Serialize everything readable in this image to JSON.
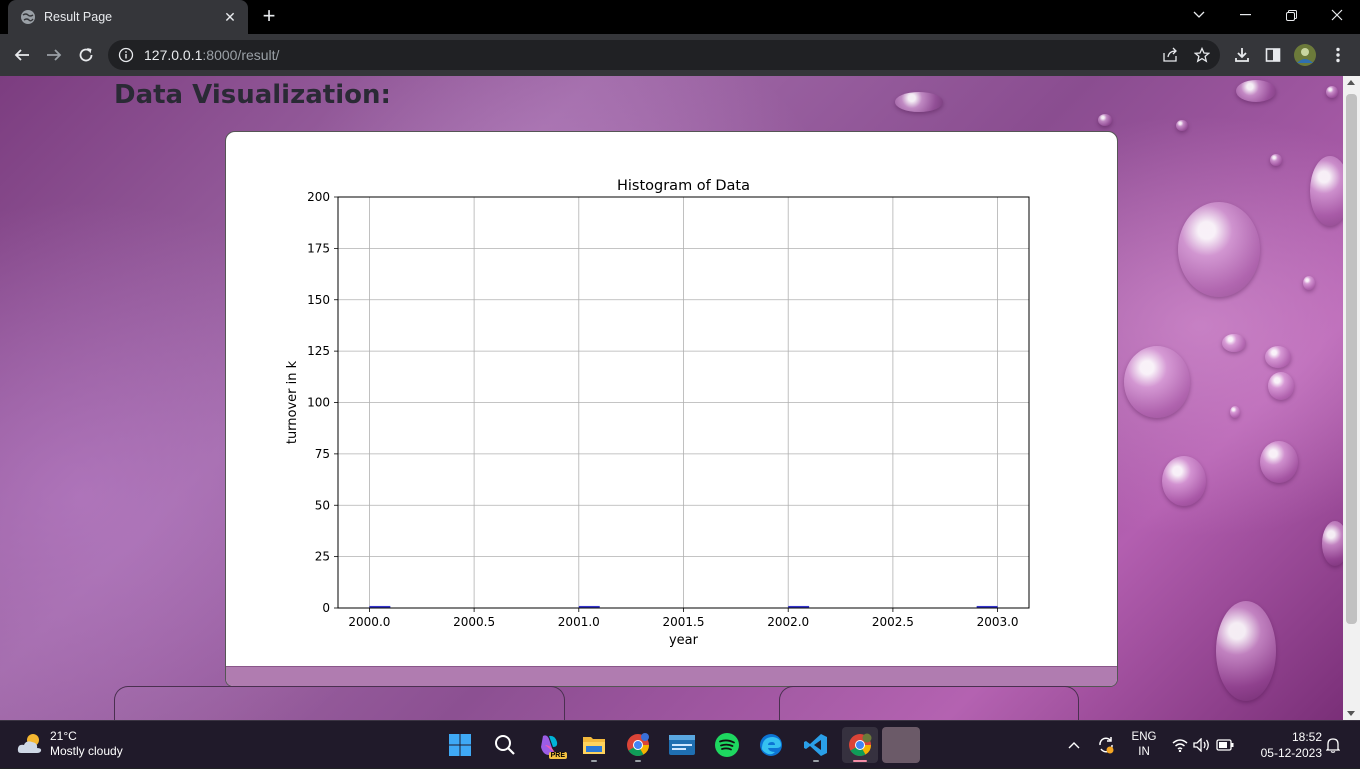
{
  "browser": {
    "tab_title": "Result Page",
    "tab_close": "✕",
    "new_tab": "+",
    "url_host": "127.0.0.1",
    "url_path": ":8000/result/"
  },
  "page": {
    "heading": "Data Visualization:"
  },
  "chart_data": {
    "type": "bar",
    "title": "Histogram of Data",
    "xlabel": "year",
    "ylabel": "turnover in k",
    "xlim": [
      1999.85,
      2003.15
    ],
    "ylim": [
      0,
      200
    ],
    "xticks": [
      "2000.0",
      "2000.5",
      "2001.0",
      "2001.5",
      "2002.0",
      "2002.5",
      "2003.0"
    ],
    "yticks": [
      "0",
      "25",
      "50",
      "75",
      "100",
      "125",
      "150",
      "175",
      "200"
    ],
    "grid": true,
    "bar_color": "#3333cc",
    "bars": [
      {
        "x": 2000.05,
        "value": 1
      },
      {
        "x": 2001.05,
        "value": 1
      },
      {
        "x": 2002.05,
        "value": 1
      },
      {
        "x": 2002.95,
        "value": 1
      }
    ]
  },
  "taskbar": {
    "weather_temp": "21°C",
    "weather_desc": "Mostly cloudy",
    "lang_top": "ENG",
    "lang_bottom": "IN",
    "time": "18:52",
    "date": "05-12-2023",
    "copilot_badge": "PRE"
  },
  "colors": {
    "accent": "#f48ca6"
  }
}
